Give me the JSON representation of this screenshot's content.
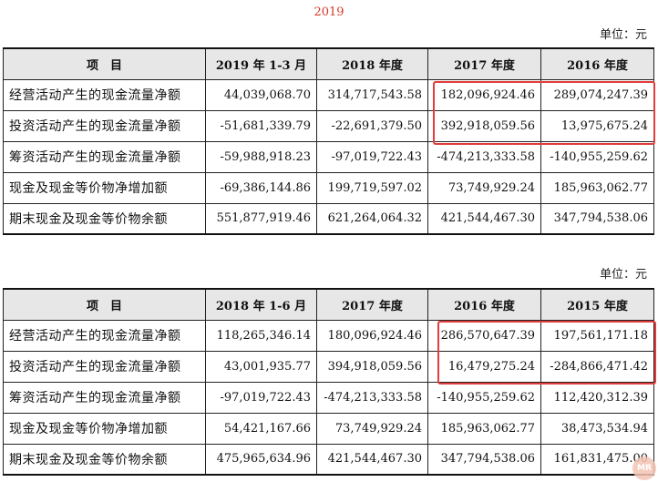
{
  "top_label": "2019",
  "unit_label": "单位：元",
  "table1": {
    "headers": [
      "项　目",
      "2019 年 1-3 月",
      "2018 年度",
      "2017 年度",
      "2016 年度"
    ],
    "rows": [
      {
        "label": "经营活动产生的现金流量净额",
        "values": [
          "44,039,068.70",
          "314,717,543.58",
          "182,096,924.46",
          "289,074,247.39"
        ]
      },
      {
        "label": "投资活动产生的现金流量净额",
        "values": [
          "-51,681,339.79",
          "-22,691,379.50",
          "392,918,059.56",
          "13,975,675.24"
        ]
      },
      {
        "label": "筹资活动产生的现金流量净额",
        "values": [
          "-59,988,918.23",
          "-97,019,722.43",
          "-474,213,333.58",
          "-140,955,259.62"
        ]
      },
      {
        "label": "现金及现金等价物净增加额",
        "values": [
          "-69,386,144.86",
          "199,719,597.02",
          "73,749,929.24",
          "185,963,062.77"
        ]
      },
      {
        "label": "期末现金及现金等价物余额",
        "values": [
          "551,877,919.46",
          "621,264,064.32",
          "421,544,467.30",
          "347,794,538.06"
        ]
      }
    ]
  },
  "table2": {
    "headers": [
      "项　目",
      "2018 年 1-6 月",
      "2017 年度",
      "2016 年度",
      "2015 年度"
    ],
    "rows": [
      {
        "label": "经营活动产生的现金流量净额",
        "values": [
          "118,265,346.14",
          "180,096,924.46",
          "286,570,647.39",
          "197,561,171.18"
        ]
      },
      {
        "label": "投资活动产生的现金流量净额",
        "values": [
          "43,001,935.77",
          "394,918,059.56",
          "16,479,275.24",
          "-284,866,471.42"
        ]
      },
      {
        "label": "筹资活动产生的现金流量净额",
        "values": [
          "-97,019,722.43",
          "-474,213,333.58",
          "-140,955,259.62",
          "112,420,312.39"
        ]
      },
      {
        "label": "现金及现金等价物净增加额",
        "values": [
          "54,421,167.66",
          "73,749,929.24",
          "185,963,062.77",
          "38,473,534.94"
        ]
      },
      {
        "label": "期末现金及现金等价物余额",
        "values": [
          "475,965,634.96",
          "421,544,467.30",
          "347,794,538.06",
          "161,831,475.00"
        ]
      }
    ]
  },
  "highlight_color": "#e23c3c",
  "watermark_text": "MR"
}
